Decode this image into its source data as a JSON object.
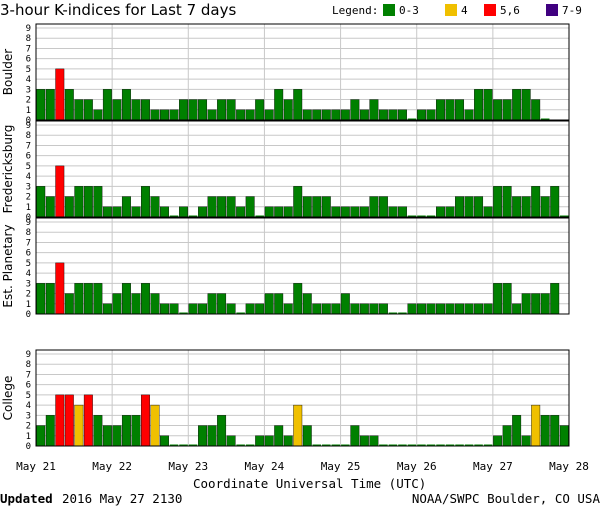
{
  "title": "3-hour K-indices for Last 7 days",
  "legend": {
    "label": "Legend:",
    "items": [
      {
        "label": "0-3",
        "color": "#008000"
      },
      {
        "label": "4",
        "color": "#f0c000"
      },
      {
        "label": "5,6",
        "color": "#ff0000"
      },
      {
        "label": "7-9",
        "color": "#400080"
      }
    ]
  },
  "xlabel": "Coordinate Universal Time (UTC)",
  "footer": {
    "updated_label": "Updated",
    "updated_value": "2016 May 27 2130",
    "credit": "NOAA/SWPC Boulder, CO USA"
  },
  "chart_data": {
    "type": "bar",
    "x_ticks": [
      "May 21",
      "May 22",
      "May 23",
      "May 24",
      "May 25",
      "May 26",
      "May 27",
      "May 28"
    ],
    "ylim": [
      0,
      9
    ],
    "y_ticks": [
      "0",
      "1",
      "2",
      "3",
      "4",
      "5",
      "6",
      "7",
      "8",
      "9"
    ],
    "grid": true,
    "legend_position": "top-right",
    "panels": [
      {
        "ylabel": "Boulder",
        "values": [
          3,
          3,
          5,
          3,
          2,
          2,
          1,
          3,
          2,
          3,
          2,
          2,
          1,
          1,
          1,
          2,
          2,
          2,
          1,
          2,
          2,
          1,
          1,
          2,
          1,
          3,
          2,
          3,
          1,
          1,
          1,
          1,
          1,
          2,
          1,
          2,
          1,
          1,
          1,
          0,
          1,
          1,
          2,
          2,
          2,
          1,
          3,
          3,
          2,
          2,
          3,
          3,
          2,
          0
        ]
      },
      {
        "ylabel": "Fredericksburg",
        "values": [
          3,
          2,
          5,
          2,
          3,
          3,
          3,
          1,
          1,
          2,
          1,
          3,
          2,
          1,
          0,
          1,
          0,
          1,
          2,
          2,
          2,
          1,
          2,
          0,
          1,
          1,
          1,
          3,
          2,
          2,
          2,
          1,
          1,
          1,
          1,
          2,
          2,
          1,
          1,
          0,
          0,
          0,
          1,
          1,
          2,
          2,
          2,
          1,
          3,
          3,
          2,
          2,
          3,
          2,
          3,
          0
        ]
      },
      {
        "ylabel": "Est. Planetary",
        "values": [
          3,
          3,
          5,
          2,
          3,
          3,
          3,
          1,
          2,
          3,
          2,
          3,
          2,
          1,
          1,
          0,
          1,
          1,
          2,
          2,
          1,
          0,
          1,
          1,
          2,
          2,
          1,
          3,
          2,
          1,
          1,
          1,
          2,
          1,
          1,
          1,
          1,
          0,
          0,
          1,
          1,
          1,
          1,
          1,
          1,
          1,
          1,
          1,
          3,
          3,
          1,
          2,
          2,
          2,
          3
        ]
      },
      {
        "ylabel": "College",
        "values": [
          2,
          3,
          5,
          5,
          4,
          5,
          3,
          2,
          2,
          3,
          3,
          5,
          4,
          1,
          0,
          0,
          0,
          2,
          2,
          3,
          1,
          0,
          0,
          1,
          1,
          2,
          1,
          4,
          2,
          0,
          0,
          0,
          0,
          2,
          1,
          1,
          0,
          0,
          0,
          0,
          0,
          0,
          0,
          0,
          0,
          0,
          0,
          0,
          1,
          2,
          3,
          1,
          4,
          3,
          3,
          2
        ]
      }
    ]
  }
}
